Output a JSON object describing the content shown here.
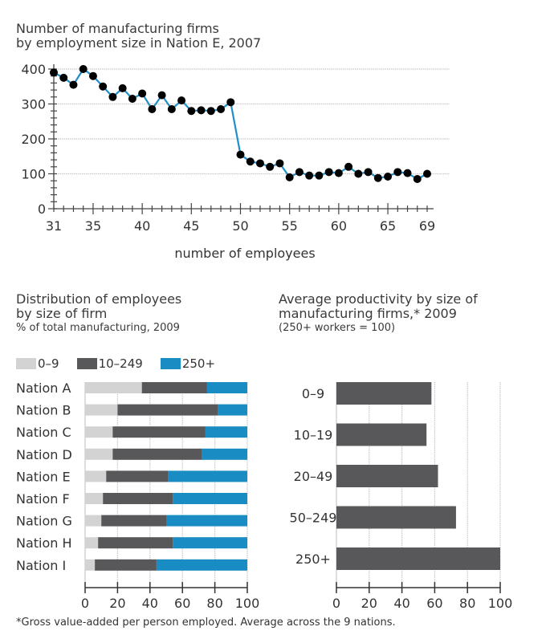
{
  "chart_data": [
    {
      "type": "line",
      "title": "Number of manufacturing firms",
      "subtitle": "by employment size in Nation E, 2007",
      "xlabel": "number of employees",
      "ylabel": "",
      "xlim": [
        31,
        69
      ],
      "ylim": [
        0,
        400
      ],
      "xticks": [
        31,
        35,
        40,
        45,
        50,
        55,
        60,
        65,
        69
      ],
      "yticks": [
        0,
        100,
        200,
        300,
        400
      ],
      "grid": true,
      "color": "#1f8fc8",
      "x": [
        31,
        32,
        33,
        34,
        35,
        36,
        37,
        38,
        39,
        40,
        41,
        42,
        43,
        44,
        45,
        46,
        47,
        48,
        49,
        50,
        51,
        52,
        53,
        54,
        55,
        56,
        57,
        58,
        59,
        60,
        61,
        62,
        63,
        64,
        65,
        66,
        67,
        68,
        69
      ],
      "y": [
        390,
        375,
        355,
        400,
        380,
        350,
        320,
        345,
        315,
        330,
        285,
        325,
        285,
        310,
        280,
        282,
        280,
        285,
        305,
        155,
        135,
        130,
        120,
        130,
        90,
        105,
        95,
        95,
        105,
        102,
        120,
        100,
        105,
        88,
        92,
        105,
        102,
        85,
        100
      ]
    },
    {
      "type": "bar",
      "stacked": true,
      "orientation": "horizontal",
      "title": "Distribution of employees",
      "title2": "by size of firm",
      "subtitle": "% of total manufacturing, 2009",
      "xlim": [
        0,
        100
      ],
      "xticks": [
        0,
        20,
        40,
        60,
        80,
        100
      ],
      "categories": [
        "Nation A",
        "Nation B",
        "Nation C",
        "Nation D",
        "Nation E",
        "Nation F",
        "Nation G",
        "Nation H",
        "Nation I"
      ],
      "legend": [
        {
          "name": "0–9",
          "color": "#d3d3d3"
        },
        {
          "name": "10–249",
          "color": "#58585a"
        },
        {
          "name": "250+",
          "color": "#1a8cc4"
        }
      ],
      "series": [
        {
          "name": "0–9",
          "values": [
            35,
            20,
            17,
            17,
            13,
            11,
            10,
            8,
            6
          ]
        },
        {
          "name": "10–249",
          "values": [
            40,
            62,
            57,
            55,
            38,
            43,
            40,
            46,
            38
          ]
        },
        {
          "name": "250+",
          "values": [
            25,
            18,
            26,
            28,
            49,
            46,
            50,
            46,
            56
          ]
        }
      ]
    },
    {
      "type": "bar",
      "orientation": "horizontal",
      "title": "Average productivity by size of",
      "title2": "manufacturing firms,* 2009",
      "subtitle": "(250+ workers = 100)",
      "xlim": [
        0,
        100
      ],
      "xticks": [
        0,
        20,
        40,
        60,
        80,
        100
      ],
      "color": "#58585a",
      "categories": [
        "0–9",
        "10–19",
        "20–49",
        "50–249",
        "250+"
      ],
      "values": [
        58,
        55,
        62,
        73,
        100
      ]
    }
  ],
  "footnote": "*Gross value-added per person employed. Average across the 9 nations."
}
